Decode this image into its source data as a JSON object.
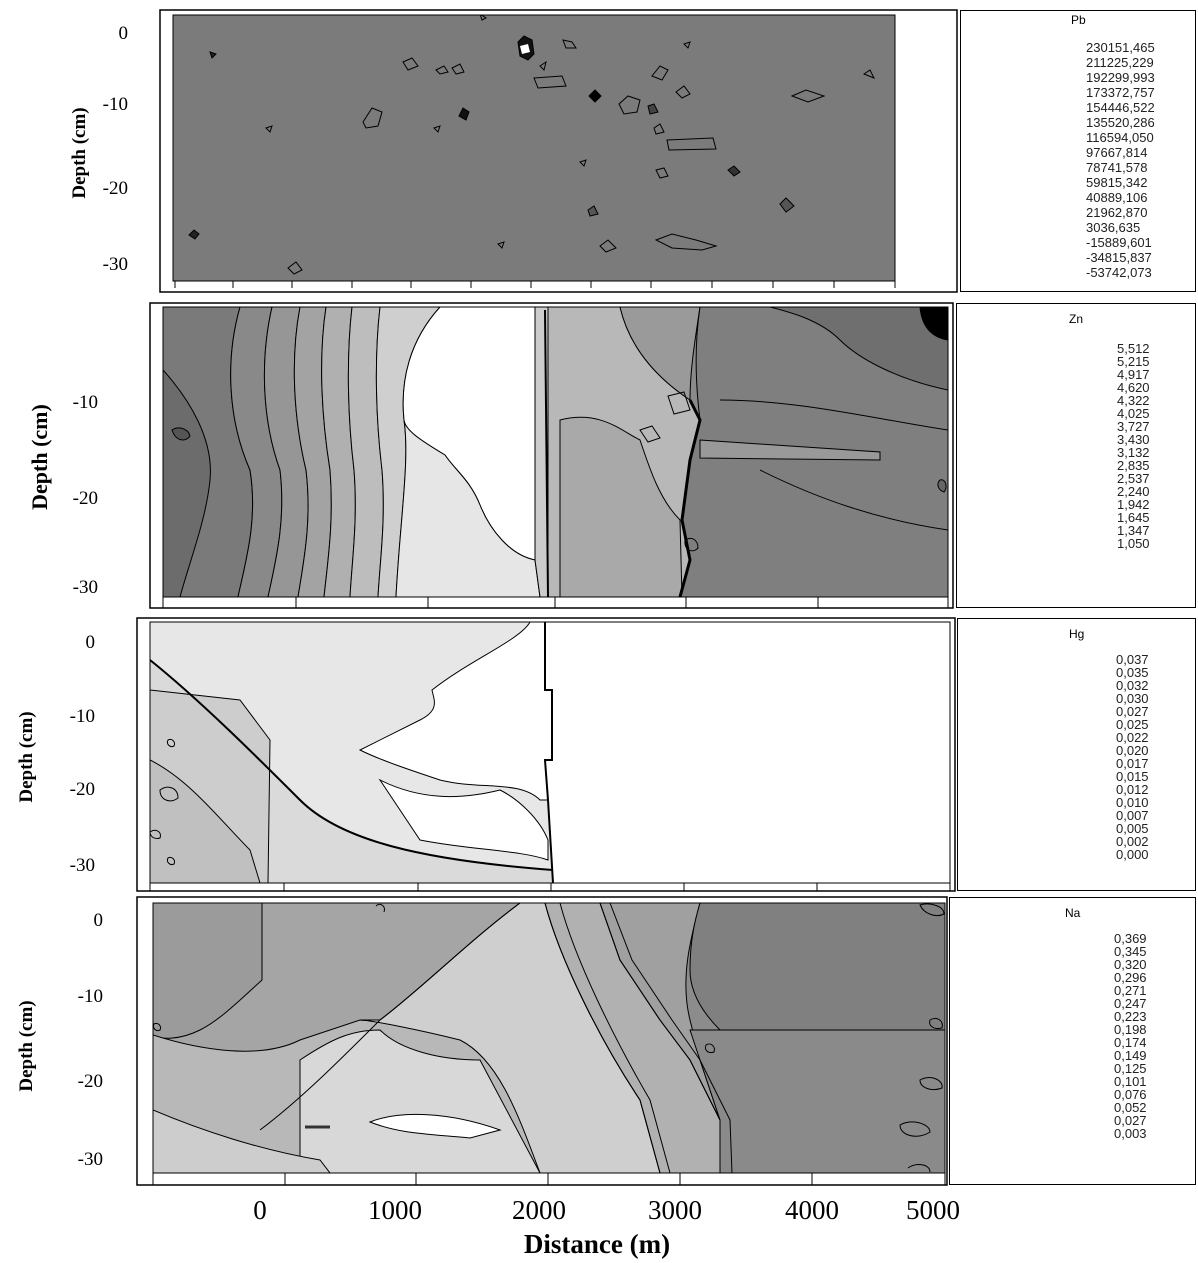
{
  "chart_data": [
    {
      "type": "heatmap",
      "element": "Pb",
      "ylabel": "Depth (cm)",
      "y_ticks": [
        "0",
        "-10",
        "-20",
        "-30"
      ],
      "legend_values": [
        "230151,465",
        "211225,229",
        "192299,993",
        "173372,757",
        "154446,522",
        "135520,286",
        "116594,050",
        "97667,814",
        "78741,578",
        "59815,342",
        "40889,106",
        "21962,870",
        "3036,635",
        "-15889,601",
        "-34815,837",
        "-53742,073"
      ],
      "palette": [
        "#ffffff",
        "#f1f1f1",
        "#e4e4e4",
        "#d7d7d7",
        "#cacaca",
        "#bdbdbd",
        "#b0b0b0",
        "#a3a3a3",
        "#969696",
        "#898989",
        "#7c7c7c",
        "#6f6f6f",
        "#626262",
        "#4a4a4a",
        "#000000"
      ],
      "fill": "#7b7b7b"
    },
    {
      "type": "heatmap",
      "element": "Zn",
      "ylabel": "Depth (cm)",
      "y_ticks": [
        "-10",
        "-20",
        "-30"
      ],
      "legend_values": [
        "5,512",
        "5,215",
        "4,917",
        "4,620",
        "4,322",
        "4,025",
        "3,727",
        "3,430",
        "3,132",
        "2,835",
        "2,537",
        "2,240",
        "1,942",
        "1,645",
        "1,347",
        "1,050"
      ],
      "palette": [
        "#000000",
        "#4b4b4b",
        "#585858",
        "#656565",
        "#727272",
        "#7f7f7f",
        "#8c8c8c",
        "#999999",
        "#a6a6a6",
        "#b3b3b3",
        "#c0c0c0",
        "#cdcdcd",
        "#dadada",
        "#e7e7e7",
        "#ffffff"
      ],
      "fill": "#8a8a8a"
    },
    {
      "type": "heatmap",
      "element": "Hg",
      "ylabel": "Depth (cm)",
      "y_ticks": [
        "0",
        "-10",
        "-20",
        "-30"
      ],
      "legend_values": [
        "0,037",
        "0,035",
        "0,032",
        "0,030",
        "0,027",
        "0,025",
        "0,022",
        "0,020",
        "0,017",
        "0,015",
        "0,012",
        "0,010",
        "0,007",
        "0,005",
        "0,002",
        "0,000"
      ],
      "palette": [
        "#000000",
        "#4b4b4b",
        "#585858",
        "#656565",
        "#727272",
        "#7f7f7f",
        "#8c8c8c",
        "#999999",
        "#a6a6a6",
        "#b3b3b3",
        "#c0c0c0",
        "#cdcdcd",
        "#dadada",
        "#e7e7e7",
        "#ffffff"
      ],
      "fill": "#ffffff"
    },
    {
      "type": "heatmap",
      "element": "Na",
      "ylabel": "Depth (cm)",
      "y_ticks": [
        "0",
        "-10",
        "-20",
        "-30"
      ],
      "legend_values": [
        "0,369",
        "0,345",
        "0,320",
        "0,296",
        "0,271",
        "0,247",
        "0,223",
        "0,198",
        "0,174",
        "0,149",
        "0,125",
        "0,101",
        "0,076",
        "0,052",
        "0,027",
        "0,003"
      ],
      "palette": [
        "#000000",
        "#4b4b4b",
        "#585858",
        "#656565",
        "#727272",
        "#7f7f7f",
        "#8c8c8c",
        "#999999",
        "#a6a6a6",
        "#b3b3b3",
        "#c0c0c0",
        "#cdcdcd",
        "#dadada",
        "#e7e7e7",
        "#ffffff"
      ],
      "fill": "#8c8c8c"
    }
  ],
  "x_axis": {
    "label": "Distance (m)",
    "ticks": [
      "0",
      "1000",
      "2000",
      "3000",
      "4000",
      "5000"
    ]
  }
}
